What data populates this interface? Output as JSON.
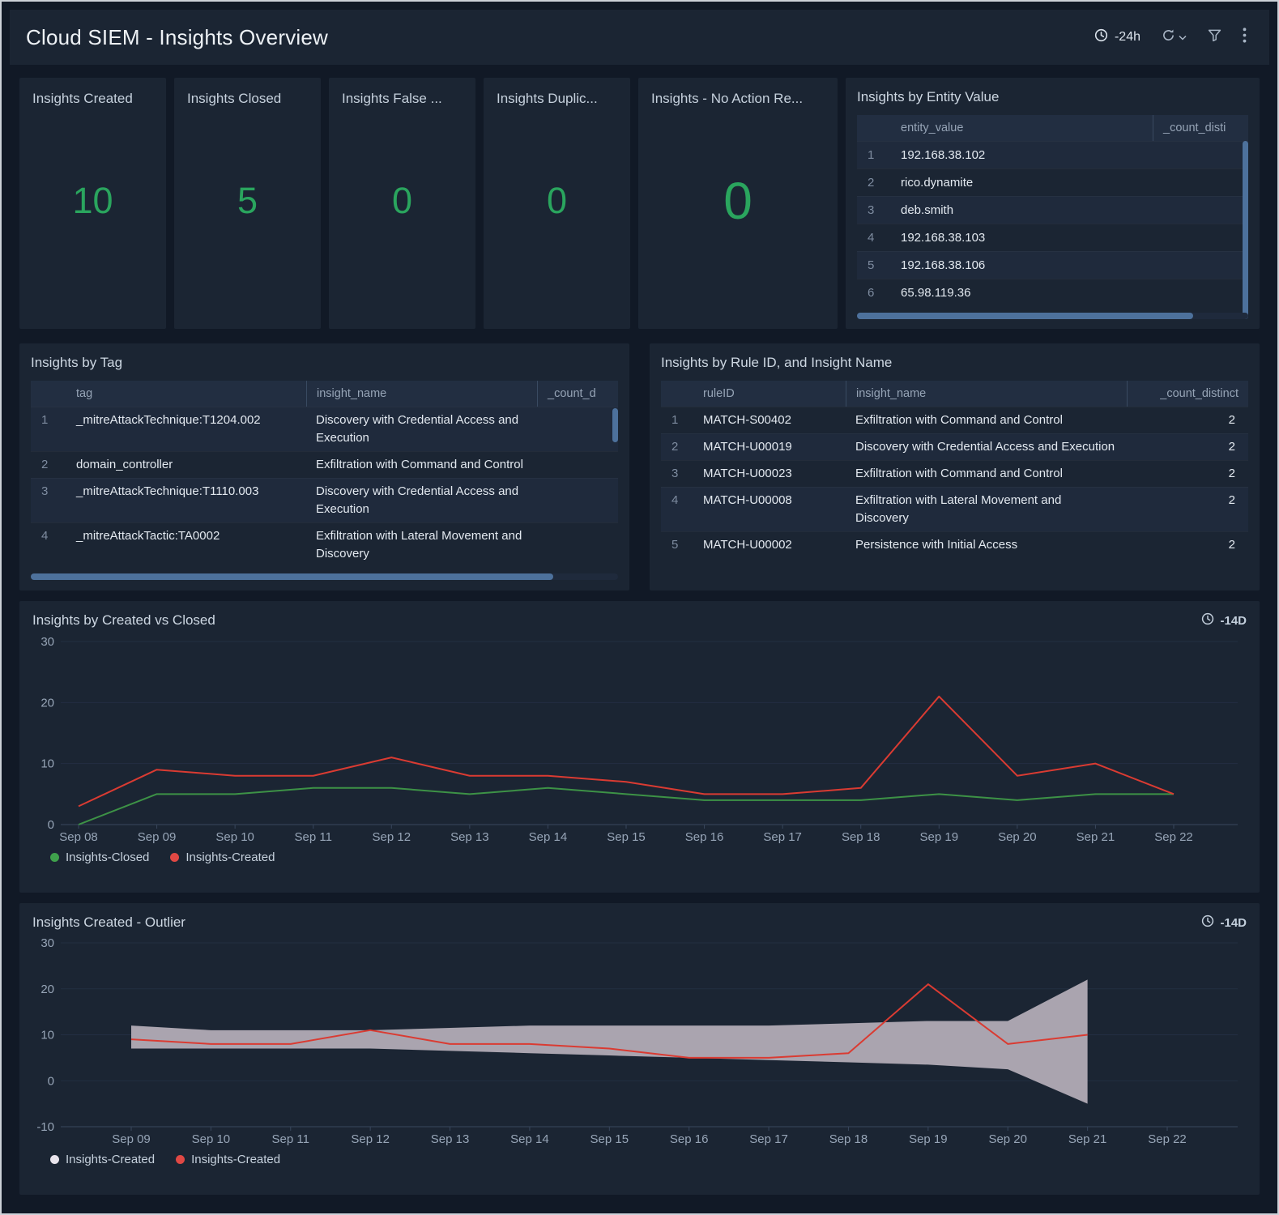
{
  "header": {
    "title": "Cloud SIEM - Insights Overview",
    "time_range": "-24h",
    "icons": [
      "clock-icon",
      "refresh-icon",
      "chevron-down-icon",
      "filter-icon",
      "kebab-menu-icon"
    ]
  },
  "colors": {
    "stat_value_green": "#2aa55e",
    "created_red": "#da3b32",
    "closed_green": "#3d9246",
    "outlier_band_gray": "#b6afba"
  },
  "stats": [
    {
      "label": "Insights Created",
      "value": "10"
    },
    {
      "label": "Insights Closed",
      "value": "5"
    },
    {
      "label": "Insights False ...",
      "value": "0"
    },
    {
      "label": "Insights Duplic...",
      "value": "0"
    },
    {
      "label": "Insights - No Action Re...",
      "value": "0"
    }
  ],
  "entity_panel": {
    "title": "Insights by Entity Value",
    "columns": [
      "entity_value",
      "_count_disti"
    ],
    "rows": [
      "192.168.38.102",
      "rico.dynamite",
      "deb.smith",
      "192.168.38.103",
      "192.168.38.106",
      "65.98.119.36"
    ]
  },
  "tag_panel": {
    "title": "Insights by Tag",
    "columns": [
      "tag",
      "insight_name",
      "_count_d"
    ],
    "rows": [
      {
        "tag": "_mitreAttackTechnique:T1204.002",
        "insight": "Discovery with Credential Access and Execution"
      },
      {
        "tag": "domain_controller",
        "insight": "Exfiltration with Command and Control"
      },
      {
        "tag": "_mitreAttackTechnique:T1110.003",
        "insight": "Discovery with Credential Access and Execution"
      },
      {
        "tag": "_mitreAttackTactic:TA0002",
        "insight": "Exfiltration with Lateral Movement and Discovery"
      }
    ]
  },
  "rule_panel": {
    "title": "Insights by Rule ID, and Insight Name",
    "columns": [
      "ruleID",
      "insight_name",
      "_count_distinct"
    ],
    "rows": [
      {
        "rule": "MATCH-S00402",
        "insight": "Exfiltration with Command and Control",
        "count": "2"
      },
      {
        "rule": "MATCH-U00019",
        "insight": "Discovery with Credential Access and Execution",
        "count": "2"
      },
      {
        "rule": "MATCH-U00023",
        "insight": "Exfiltration with Command and Control",
        "count": "2"
      },
      {
        "rule": "MATCH-U00008",
        "insight": "Exfiltration with Lateral Movement and Discovery",
        "count": "2"
      },
      {
        "rule": "MATCH-U00002",
        "insight": "Persistence with Initial Access",
        "count": "2"
      }
    ]
  },
  "chart_data": [
    {
      "type": "line",
      "title": "Insights by Created vs Closed",
      "time_range": "-14D",
      "x": [
        "Sep 08",
        "Sep 09",
        "Sep 10",
        "Sep 11",
        "Sep 12",
        "Sep 13",
        "Sep 14",
        "Sep 15",
        "Sep 16",
        "Sep 17",
        "Sep 18",
        "Sep 19",
        "Sep 20",
        "Sep 21",
        "Sep 22"
      ],
      "ylim": [
        0,
        30
      ],
      "yticks": [
        0,
        10,
        20,
        30
      ],
      "grid": true,
      "legend_position": "bottom-left",
      "series": [
        {
          "name": "Insights-Closed",
          "color": "#3d9246",
          "values": [
            0,
            5,
            5,
            6,
            6,
            5,
            6,
            5,
            4,
            4,
            4,
            5,
            4,
            5,
            5
          ]
        },
        {
          "name": "Insights-Created",
          "color": "#da3b32",
          "values": [
            3,
            9,
            8,
            8,
            11,
            8,
            8,
            7,
            5,
            5,
            6,
            21,
            8,
            10,
            5
          ]
        }
      ],
      "legend": [
        {
          "label": "Insights-Closed",
          "color": "#3fa14c"
        },
        {
          "label": "Insights-Created",
          "color": "#e04844"
        }
      ]
    },
    {
      "type": "line",
      "title": "Insights Created - Outlier",
      "time_range": "-14D",
      "x": [
        "Sep 09",
        "Sep 10",
        "Sep 11",
        "Sep 12",
        "Sep 13",
        "Sep 14",
        "Sep 15",
        "Sep 16",
        "Sep 17",
        "Sep 18",
        "Sep 19",
        "Sep 20",
        "Sep 21",
        "Sep 22"
      ],
      "ylim": [
        -10,
        30
      ],
      "yticks": [
        -10,
        0,
        10,
        20,
        30
      ],
      "grid": true,
      "legend_position": "bottom-left",
      "band": {
        "name": "Insights-Created",
        "color": "#b6afba",
        "upper": [
          12,
          11,
          11,
          11,
          11.5,
          12,
          12,
          12,
          12,
          12.5,
          13,
          13,
          22,
          null
        ],
        "lower": [
          7,
          7,
          7,
          7,
          6.5,
          6,
          5.5,
          5,
          4.5,
          4,
          3.5,
          2.5,
          -5,
          null
        ]
      },
      "series": [
        {
          "name": "Insights-Created",
          "color": "#da3b32",
          "values": [
            9,
            8,
            8,
            11,
            8,
            8,
            7,
            5,
            5,
            6,
            21,
            8,
            10,
            null
          ]
        }
      ],
      "legend": [
        {
          "label": "Insights-Created",
          "color": "#e9e4ec"
        },
        {
          "label": "Insights-Created",
          "color": "#e04844"
        }
      ]
    }
  ]
}
